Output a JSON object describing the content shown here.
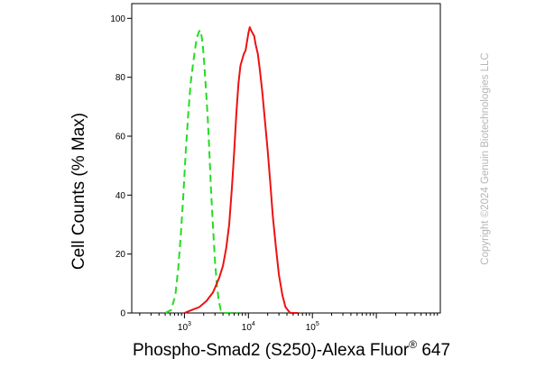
{
  "chart_data": {
    "type": "line",
    "xlabel": "Phospho-Smad2 (S250)-Alexa Fluor",
    "xlabel_superscript": "®",
    "xlabel_suffix": " 647",
    "ylabel": "Cell Counts (% Max)",
    "x_scale": "log",
    "xlim": [
      150,
      10000000
    ],
    "ylim": [
      0,
      105
    ],
    "yticks": [
      0,
      20,
      40,
      60,
      80,
      100
    ],
    "xticks": [
      {
        "value": 1000,
        "base": "10",
        "exp": "3"
      },
      {
        "value": 10000,
        "base": "10",
        "exp": "4"
      },
      {
        "value": 100000,
        "base": "10",
        "exp": "5"
      }
    ],
    "grid": false,
    "legend": "none",
    "watermark": "Copyright ©2024 Genuin Biotechnologies LLC",
    "series": [
      {
        "color": "#22dd22",
        "dash": true,
        "points": [
          [
            500,
            0
          ],
          [
            620,
            1
          ],
          [
            720,
            6
          ],
          [
            800,
            15
          ],
          [
            880,
            27
          ],
          [
            960,
            40
          ],
          [
            1050,
            55
          ],
          [
            1150,
            68
          ],
          [
            1250,
            78
          ],
          [
            1350,
            84
          ],
          [
            1450,
            89
          ],
          [
            1550,
            93
          ],
          [
            1650,
            95
          ],
          [
            1750,
            96
          ],
          [
            1850,
            94
          ],
          [
            1950,
            90
          ],
          [
            2050,
            84
          ],
          [
            2150,
            77
          ],
          [
            2300,
            67
          ],
          [
            2450,
            55
          ],
          [
            2600,
            42
          ],
          [
            2800,
            29
          ],
          [
            3000,
            18
          ],
          [
            3200,
            10
          ],
          [
            3450,
            4
          ],
          [
            3700,
            1
          ],
          [
            4000,
            0
          ],
          [
            5000,
            0
          ],
          [
            7000,
            0
          ]
        ]
      },
      {
        "color": "#ee1111",
        "dash": false,
        "points": [
          [
            1000,
            0
          ],
          [
            1300,
            1
          ],
          [
            1700,
            2
          ],
          [
            2200,
            4
          ],
          [
            2800,
            7
          ],
          [
            3500,
            12
          ],
          [
            4000,
            16
          ],
          [
            4500,
            22
          ],
          [
            5000,
            30
          ],
          [
            5500,
            42
          ],
          [
            6000,
            55
          ],
          [
            6500,
            68
          ],
          [
            7000,
            78
          ],
          [
            7500,
            84
          ],
          [
            8000,
            86
          ],
          [
            8500,
            88
          ],
          [
            9000,
            89
          ],
          [
            9500,
            92
          ],
          [
            10000,
            95
          ],
          [
            10500,
            97
          ],
          [
            11000,
            96
          ],
          [
            11600,
            95
          ],
          [
            12300,
            94
          ],
          [
            13000,
            91
          ],
          [
            14000,
            88
          ],
          [
            15000,
            83
          ],
          [
            16500,
            75
          ],
          [
            18000,
            66
          ],
          [
            20000,
            55
          ],
          [
            22000,
            44
          ],
          [
            24000,
            33
          ],
          [
            27000,
            22
          ],
          [
            30000,
            13
          ],
          [
            34000,
            6
          ],
          [
            38000,
            2
          ],
          [
            45000,
            0
          ],
          [
            60000,
            0
          ]
        ]
      }
    ]
  }
}
